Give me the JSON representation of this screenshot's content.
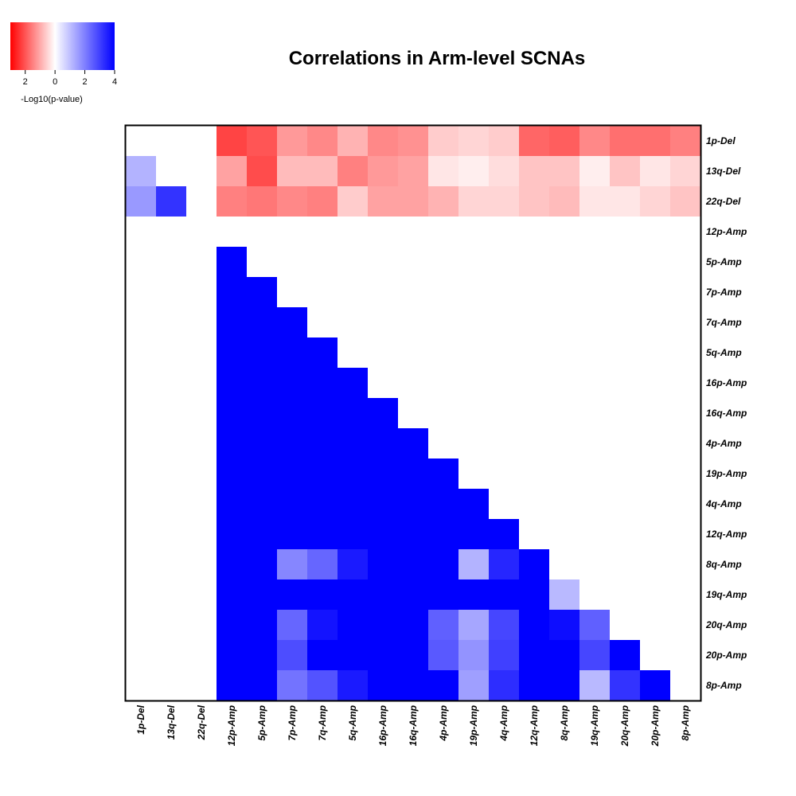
{
  "chart_data": {
    "type": "heatmap",
    "title": "Correlations in Arm-level SCNAs",
    "value_label": "-Log10(p-value)",
    "sign_convention": "negative = red (anti-correlation), positive = blue (correlation)",
    "color_scale": {
      "min": -3,
      "max": 4,
      "low_color": "#ff0000",
      "mid_color": "#ffffff",
      "high_color": "#0000ff"
    },
    "legend": {
      "ticks": [
        "2",
        "0",
        "2",
        "4"
      ],
      "tick_values": [
        -2,
        0,
        2,
        4
      ],
      "label": "-Log10(p-value)"
    },
    "rows": [
      "1p-Del",
      "13q-Del",
      "22q-Del",
      "12p-Amp",
      "5p-Amp",
      "7p-Amp",
      "7q-Amp",
      "5q-Amp",
      "16p-Amp",
      "16q-Amp",
      "4p-Amp",
      "19p-Amp",
      "4q-Amp",
      "12q-Amp",
      "8q-Amp",
      "19q-Amp",
      "20q-Amp",
      "20p-Amp",
      "8p-Amp"
    ],
    "columns": [
      "1p-Del",
      "13q-Del",
      "22q-Del",
      "12p-Amp",
      "5p-Amp",
      "7p-Amp",
      "7q-Amp",
      "5q-Amp",
      "16p-Amp",
      "16q-Amp",
      "4p-Amp",
      "19p-Amp",
      "4q-Amp",
      "12q-Amp",
      "8q-Amp",
      "19q-Amp",
      "20q-Amp",
      "20p-Amp",
      "8p-Amp"
    ],
    "values": [
      [
        0,
        0,
        0,
        -2.2,
        -2.0,
        -1.2,
        -1.4,
        -0.9,
        -1.4,
        -1.3,
        -0.6,
        -0.5,
        -0.6,
        -1.8,
        -1.9,
        -1.4,
        -1.7,
        -1.7,
        -1.5
      ],
      [
        1.2,
        0,
        0,
        -1.1,
        -2.1,
        -0.8,
        -0.8,
        -1.5,
        -1.2,
        -1.1,
        -0.3,
        -0.2,
        -0.4,
        -0.7,
        -0.7,
        -0.2,
        -0.7,
        -0.3,
        -0.5
      ],
      [
        1.6,
        3.2,
        0,
        -1.5,
        -1.6,
        -1.4,
        -1.5,
        -0.6,
        -1.1,
        -1.1,
        -0.9,
        -0.5,
        -0.5,
        -0.7,
        -0.8,
        -0.3,
        -0.3,
        -0.5,
        -0.7
      ],
      [
        0,
        0,
        0,
        0,
        0,
        0,
        0,
        0,
        0,
        0,
        0,
        0,
        0,
        0,
        0,
        0,
        0,
        0,
        0
      ],
      [
        0,
        0,
        0,
        4,
        0,
        0,
        0,
        0,
        0,
        0,
        0,
        0,
        0,
        0,
        0,
        0,
        0,
        0,
        0
      ],
      [
        0,
        0,
        0,
        4,
        4,
        0,
        0,
        0,
        0,
        0,
        0,
        0,
        0,
        0,
        0,
        0,
        0,
        0,
        0
      ],
      [
        0,
        0,
        0,
        4,
        4,
        4,
        0,
        0,
        0,
        0,
        0,
        0,
        0,
        0,
        0,
        0,
        0,
        0,
        0
      ],
      [
        0,
        0,
        0,
        4,
        4,
        4,
        4,
        0,
        0,
        0,
        0,
        0,
        0,
        0,
        0,
        0,
        0,
        0,
        0
      ],
      [
        0,
        0,
        0,
        4,
        4,
        4,
        4,
        4,
        0,
        0,
        0,
        0,
        0,
        0,
        0,
        0,
        0,
        0,
        0
      ],
      [
        0,
        0,
        0,
        4,
        4,
        4,
        4,
        4,
        4,
        0,
        0,
        0,
        0,
        0,
        0,
        0,
        0,
        0,
        0
      ],
      [
        0,
        0,
        0,
        4,
        4,
        4,
        4,
        4,
        4,
        4,
        0,
        0,
        0,
        0,
        0,
        0,
        0,
        0,
        0
      ],
      [
        0,
        0,
        0,
        4,
        4,
        4,
        4,
        4,
        4,
        4,
        4,
        0,
        0,
        0,
        0,
        0,
        0,
        0,
        0
      ],
      [
        0,
        0,
        0,
        4,
        4,
        4,
        4,
        4,
        4,
        4,
        4,
        4,
        0,
        0,
        0,
        0,
        0,
        0,
        0
      ],
      [
        0,
        0,
        0,
        4,
        4,
        4,
        4,
        4,
        4,
        4,
        4,
        4,
        4,
        0,
        0,
        0,
        0,
        0,
        0
      ],
      [
        0,
        0,
        0,
        4,
        4,
        1.9,
        2.4,
        3.6,
        4,
        4,
        4,
        1.2,
        3.4,
        4,
        0,
        0,
        0,
        0,
        0
      ],
      [
        0,
        0,
        0,
        4,
        4,
        4,
        4,
        4,
        4,
        4,
        4,
        4,
        4,
        4,
        1.1,
        0,
        0,
        0,
        0
      ],
      [
        0,
        0,
        0,
        4,
        4,
        2.4,
        3.7,
        4,
        4,
        4,
        2.5,
        1.4,
        2.9,
        4,
        3.8,
        2.5,
        0,
        0,
        0
      ],
      [
        0,
        0,
        0,
        4,
        4,
        2.8,
        4,
        4,
        4,
        4,
        2.6,
        1.7,
        3.0,
        4,
        4,
        2.9,
        4,
        0,
        0
      ],
      [
        0,
        0,
        0,
        4,
        4,
        2.2,
        2.7,
        3.6,
        4,
        4,
        4,
        1.5,
        3.3,
        4,
        4,
        1.1,
        3.2,
        4,
        0
      ]
    ]
  }
}
